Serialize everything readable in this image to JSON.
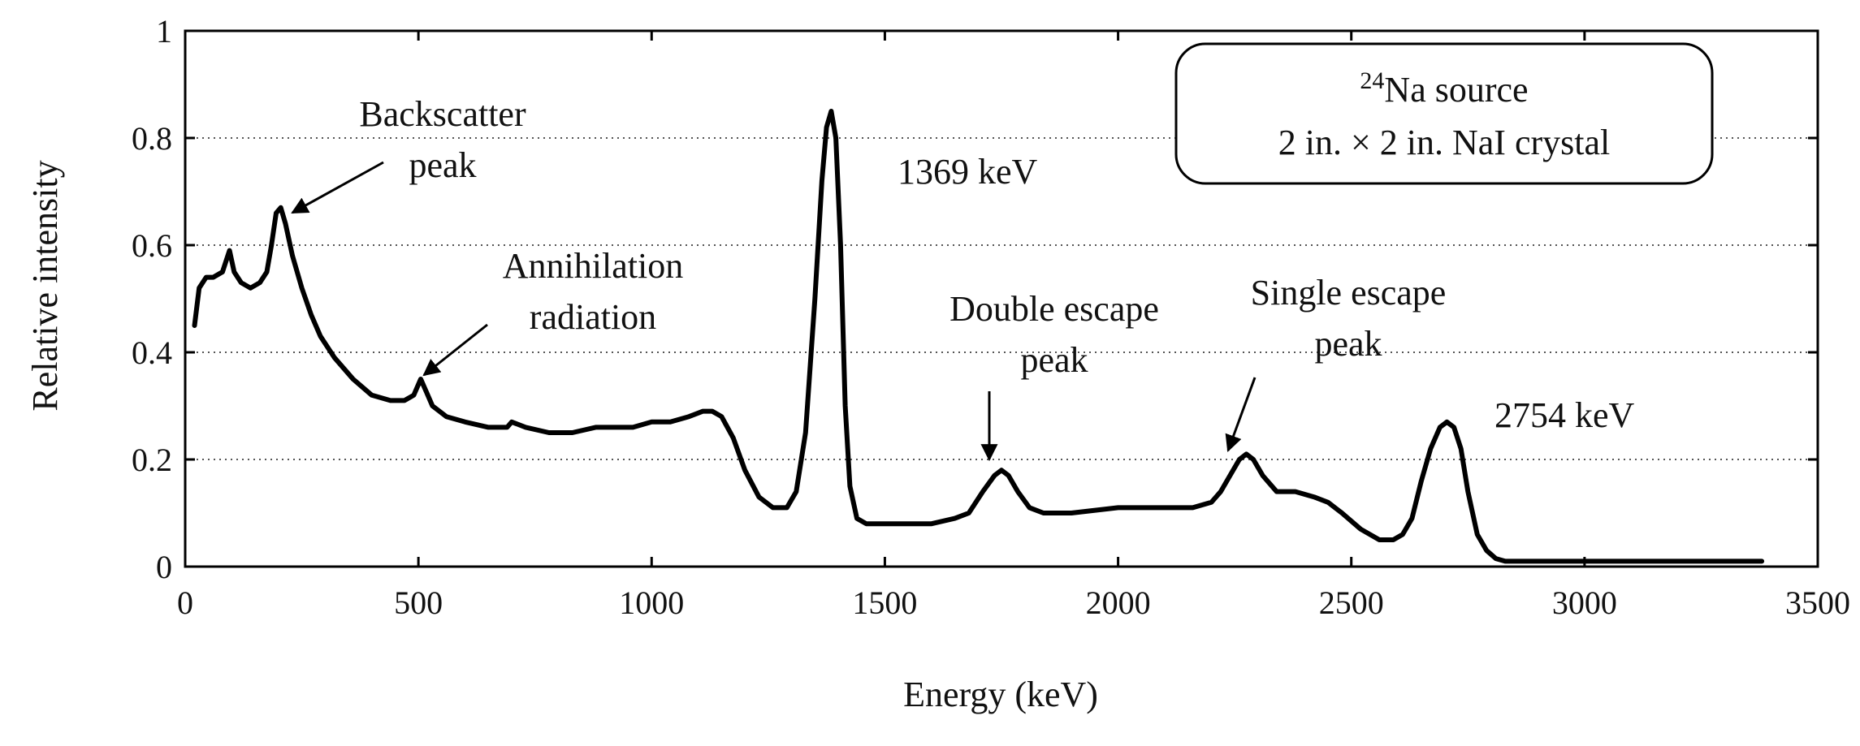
{
  "chart_data": {
    "type": "line",
    "title": "",
    "xlabel": "Energy (keV)",
    "ylabel": "Relative intensity",
    "xlim": [
      0,
      3500
    ],
    "ylim": [
      0,
      1
    ],
    "x_ticks": [
      0,
      500,
      1000,
      1500,
      2000,
      2500,
      3000,
      3500
    ],
    "y_ticks": [
      0,
      0.2,
      0.4,
      0.6,
      0.8,
      1
    ],
    "x_tick_labels": [
      "0",
      "500",
      "1000",
      "1500",
      "2000",
      "2500",
      "3000",
      "3500"
    ],
    "y_tick_labels": [
      "0",
      "0.2",
      "0.4",
      "0.6",
      "0.8",
      "1"
    ],
    "grid": "dotted horizontal lines at 0.2, 0.4, 0.6, 0.8",
    "legend_box": {
      "superscript": "24",
      "line1": "Na source",
      "line2": "2 in. × 2 in. NaI crystal",
      "placement": "top-right"
    },
    "annotations": [
      {
        "id": "backscatter",
        "lines": [
          "Backscatter",
          "peak"
        ],
        "arrow_to": [
          200,
          0.66
        ]
      },
      {
        "id": "annihilation",
        "lines": [
          "Annihilation",
          "radiation"
        ],
        "arrow_to": [
          511,
          0.35
        ]
      },
      {
        "id": "peak-1369",
        "lines": [
          "1369 keV"
        ]
      },
      {
        "id": "double-escape",
        "lines": [
          "Double escape",
          "peak"
        ],
        "arrow_to": [
          1750,
          0.18
        ]
      },
      {
        "id": "single-escape",
        "lines": [
          "Single escape",
          "peak"
        ],
        "arrow_to": [
          2260,
          0.21
        ]
      },
      {
        "id": "peak-2754",
        "lines": [
          "2754 keV"
        ]
      }
    ],
    "series": [
      {
        "x": [
          20,
          30,
          45,
          60,
          80,
          95,
          105,
          120,
          140,
          160,
          175,
          185,
          195,
          205,
          215,
          230,
          250,
          270,
          290,
          320,
          360,
          400,
          440,
          470,
          490,
          505,
          515,
          530,
          560,
          600,
          650,
          690,
          700,
          730,
          780,
          830,
          880,
          920,
          960,
          1000,
          1040,
          1080,
          1110,
          1130,
          1150,
          1175,
          1200,
          1230,
          1260,
          1290,
          1310,
          1330,
          1350,
          1365,
          1375,
          1385,
          1395,
          1405,
          1415,
          1425,
          1440,
          1460,
          1480,
          1500,
          1550,
          1600,
          1650,
          1680,
          1710,
          1735,
          1750,
          1765,
          1785,
          1810,
          1840,
          1900,
          2000,
          2100,
          2160,
          2200,
          2220,
          2240,
          2260,
          2275,
          2290,
          2310,
          2340,
          2380,
          2420,
          2450,
          2480,
          2520,
          2560,
          2590,
          2610,
          2630,
          2650,
          2670,
          2690,
          2705,
          2720,
          2735,
          2750,
          2770,
          2790,
          2810,
          2830,
          2850,
          2880,
          2950,
          3100,
          3250,
          3380
        ],
        "y": [
          0.45,
          0.52,
          0.54,
          0.54,
          0.55,
          0.59,
          0.55,
          0.53,
          0.52,
          0.53,
          0.55,
          0.6,
          0.66,
          0.67,
          0.64,
          0.58,
          0.52,
          0.47,
          0.43,
          0.39,
          0.35,
          0.32,
          0.31,
          0.31,
          0.32,
          0.35,
          0.33,
          0.3,
          0.28,
          0.27,
          0.26,
          0.26,
          0.27,
          0.26,
          0.25,
          0.25,
          0.26,
          0.26,
          0.26,
          0.27,
          0.27,
          0.28,
          0.29,
          0.29,
          0.28,
          0.24,
          0.18,
          0.13,
          0.11,
          0.11,
          0.14,
          0.25,
          0.5,
          0.72,
          0.82,
          0.85,
          0.8,
          0.6,
          0.3,
          0.15,
          0.09,
          0.08,
          0.08,
          0.08,
          0.08,
          0.08,
          0.09,
          0.1,
          0.14,
          0.17,
          0.18,
          0.17,
          0.14,
          0.11,
          0.1,
          0.1,
          0.11,
          0.11,
          0.11,
          0.12,
          0.14,
          0.17,
          0.2,
          0.21,
          0.2,
          0.17,
          0.14,
          0.14,
          0.13,
          0.12,
          0.1,
          0.07,
          0.05,
          0.05,
          0.06,
          0.09,
          0.16,
          0.22,
          0.26,
          0.27,
          0.26,
          0.22,
          0.14,
          0.06,
          0.03,
          0.015,
          0.01,
          0.01,
          0.01,
          0.01,
          0.01,
          0.01,
          0.01
        ]
      }
    ]
  }
}
